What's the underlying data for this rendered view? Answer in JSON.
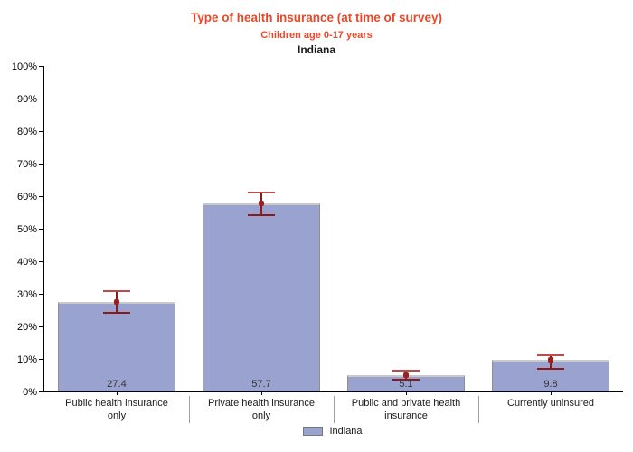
{
  "colors": {
    "title_text": "#e8492a",
    "bar_fill": "#9aa2d0",
    "bar_side": "#8f8f8f",
    "bar_top": "#c9c9c9",
    "error_main": "#8b1a1a",
    "error_cap_top": "#bf4a4a",
    "error_dot": "#9b2020",
    "axis": "#000000",
    "value_label": "#333333",
    "divider": "#a0a0a0",
    "legend_border": "#777777"
  },
  "chart_data": {
    "type": "bar",
    "title": "Type of health insurance (at time of survey)",
    "subtitle": "Children age 0-17 years",
    "region": "Indiana",
    "xlabel": "",
    "ylabel": "",
    "ylim": [
      0,
      100
    ],
    "grid": false,
    "legend_position": "bottom",
    "categories": [
      "Public health insurance only",
      "Private health insurance only",
      "Public and private health insurance",
      "Currently uninsured"
    ],
    "series": [
      {
        "name": "Indiana",
        "values": [
          27.4,
          57.7,
          5.1,
          9.8
        ],
        "error_low": [
          24.2,
          54.2,
          3.7,
          6.9
        ],
        "error_high": [
          30.7,
          61.0,
          6.5,
          11.2
        ]
      }
    ],
    "value_labels": [
      "27.4",
      "57.7",
      "5.1",
      "9.8"
    ],
    "yticks": [
      {
        "value": 0,
        "label": "0%"
      },
      {
        "value": 10,
        "label": "10%"
      },
      {
        "value": 20,
        "label": "20%"
      },
      {
        "value": 30,
        "label": "30%"
      },
      {
        "value": 40,
        "label": "40%"
      },
      {
        "value": 50,
        "label": "50%"
      },
      {
        "value": 60,
        "label": "60%"
      },
      {
        "value": 70,
        "label": "70%"
      },
      {
        "value": 80,
        "label": "80%"
      },
      {
        "value": 90,
        "label": "90%"
      },
      {
        "value": 100,
        "label": "100%"
      }
    ]
  }
}
